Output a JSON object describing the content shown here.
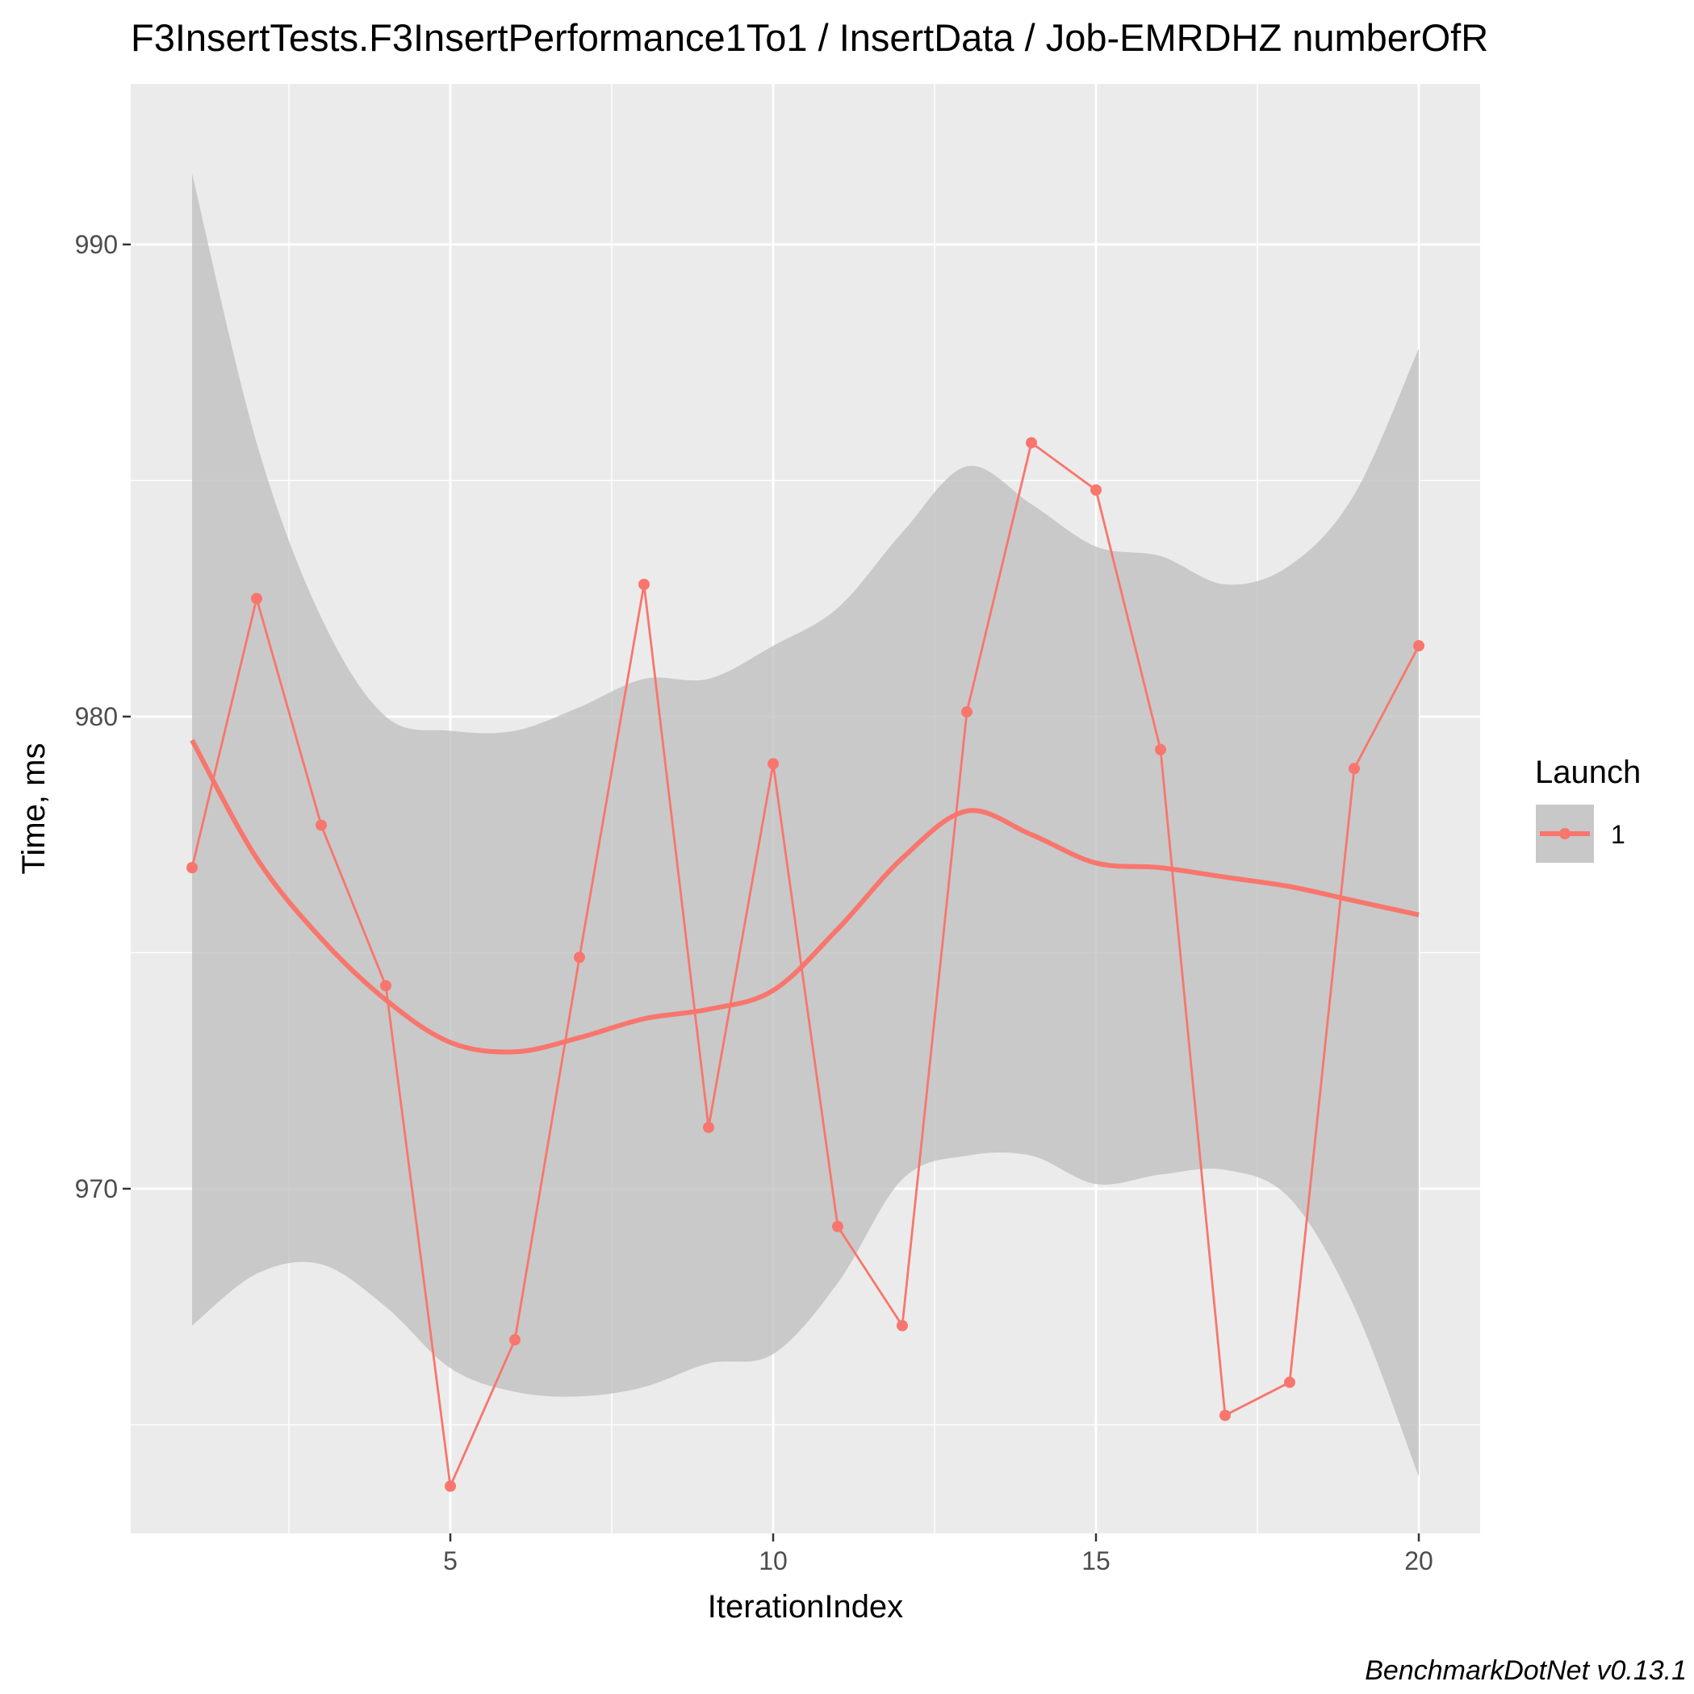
{
  "chart_data": {
    "type": "line",
    "title": "F3InsertTests.F3InsertPerformance1To1 / InsertData / Job-EMRDHZ numberOfR",
    "xlabel": "IterationIndex",
    "ylabel": "Time, ms",
    "caption": "BenchmarkDotNet v0.13.1",
    "xlim": [
      0.05,
      20.95
    ],
    "ylim": [
      962.7,
      993.4
    ],
    "x_ticks": [
      5,
      10,
      15,
      20
    ],
    "y_ticks": [
      970,
      980,
      990
    ],
    "x_tick_labels": [
      "5",
      "10",
      "15",
      "20"
    ],
    "y_tick_labels": [
      "970",
      "980",
      "990"
    ],
    "grid": true,
    "legend": {
      "title": "Launch",
      "position": "right",
      "entries": [
        "1"
      ]
    },
    "colors": {
      "series": "#F8766D",
      "panel": "#EBEBEB",
      "ribbon": "#BEBEBE",
      "grid": "#FFFFFF"
    },
    "series": [
      {
        "name": "1",
        "x": [
          1,
          2,
          3,
          4,
          5,
          6,
          7,
          8,
          9,
          10,
          11,
          12,
          13,
          14,
          15,
          16,
          17,
          18,
          19,
          20
        ],
        "values": [
          976.8,
          982.5,
          977.7,
          974.3,
          963.7,
          966.8,
          974.9,
          982.8,
          971.3,
          979.0,
          969.2,
          967.1,
          980.1,
          985.8,
          984.8,
          979.3,
          965.2,
          965.9,
          978.9,
          981.5
        ]
      }
    ],
    "smooth": {
      "method": "loess",
      "x": [
        1,
        2,
        3,
        4,
        5,
        6,
        7,
        8,
        9,
        10,
        11,
        12,
        13,
        14,
        15,
        16,
        17,
        18,
        19,
        20
      ],
      "values": [
        979.5,
        977.0,
        975.3,
        974.0,
        973.1,
        972.9,
        973.2,
        973.6,
        973.8,
        974.2,
        975.5,
        977.0,
        978.0,
        977.5,
        976.9,
        976.8,
        976.6,
        976.4,
        976.1,
        975.8
      ],
      "lower": [
        967.1,
        968.2,
        968.4,
        967.5,
        966.2,
        965.7,
        965.6,
        965.8,
        966.3,
        966.5,
        968.0,
        970.2,
        970.7,
        970.7,
        970.1,
        970.3,
        970.4,
        969.8,
        967.5,
        963.9
      ],
      "upper": [
        991.5,
        985.8,
        982.1,
        980.0,
        979.7,
        979.7,
        980.2,
        980.8,
        980.8,
        981.5,
        982.3,
        983.9,
        985.3,
        984.5,
        983.6,
        983.4,
        982.8,
        983.2,
        984.7,
        987.8
      ]
    }
  }
}
